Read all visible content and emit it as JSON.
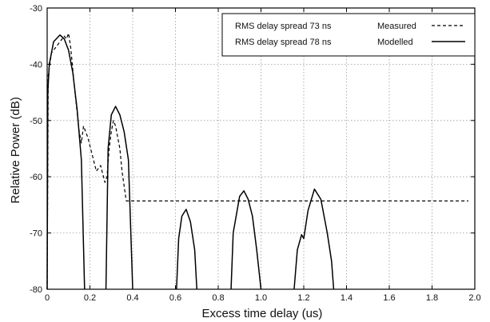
{
  "chart_data": {
    "type": "line",
    "title": "",
    "xlabel": "Excess time delay (us)",
    "ylabel": "Relative Power (dB)",
    "xlim": [
      0,
      2.0
    ],
    "ylim": [
      -80,
      -30
    ],
    "x_ticks": [
      "0",
      "0.2",
      "0.4",
      "0.6",
      "0.8",
      "1.0",
      "1.2",
      "1.4",
      "1.6",
      "1.8",
      "2.0"
    ],
    "y_ticks": [
      "-30",
      "-40",
      "-50",
      "-60",
      "-70",
      "-80"
    ],
    "grid": true,
    "legend_position": "top-right",
    "series": [
      {
        "name": "Measured",
        "legend_label": "RMS delay spread 73 ns",
        "style": "dashed",
        "color": "#000000",
        "points": [
          [
            0.0,
            -80
          ],
          [
            0.005,
            -42
          ],
          [
            0.02,
            -38
          ],
          [
            0.05,
            -36.5
          ],
          [
            0.08,
            -35
          ],
          [
            0.09,
            -35.5
          ],
          [
            0.1,
            -34.5
          ],
          [
            0.11,
            -37
          ],
          [
            0.13,
            -45
          ],
          [
            0.15,
            -52
          ],
          [
            0.16,
            -54
          ],
          [
            0.17,
            -51
          ],
          [
            0.19,
            -53
          ],
          [
            0.21,
            -56
          ],
          [
            0.23,
            -59
          ],
          [
            0.25,
            -58
          ],
          [
            0.27,
            -61
          ],
          [
            0.28,
            -60
          ],
          [
            0.29,
            -55
          ],
          [
            0.3,
            -52
          ],
          [
            0.31,
            -50
          ],
          [
            0.32,
            -51
          ],
          [
            0.34,
            -55
          ],
          [
            0.35,
            -59
          ],
          [
            0.37,
            -64.3
          ],
          [
            1.97,
            -64.3
          ]
        ]
      },
      {
        "name": "Modelled",
        "legend_label": "RMS delay spread 78 ns",
        "style": "solid",
        "color": "#000000",
        "segments": [
          [
            [
              0.0,
              -80
            ],
            [
              0.003,
              -45
            ],
            [
              0.01,
              -40
            ],
            [
              0.03,
              -36
            ],
            [
              0.06,
              -34.8
            ],
            [
              0.08,
              -35.5
            ],
            [
              0.1,
              -37.5
            ],
            [
              0.12,
              -41.5
            ],
            [
              0.14,
              -48
            ],
            [
              0.16,
              -57
            ],
            [
              0.175,
              -80
            ]
          ],
          [
            [
              0.275,
              -80
            ],
            [
              0.285,
              -55
            ],
            [
              0.3,
              -49
            ],
            [
              0.32,
              -47.5
            ],
            [
              0.34,
              -49
            ],
            [
              0.36,
              -52
            ],
            [
              0.38,
              -57
            ],
            [
              0.4,
              -80
            ]
          ],
          [
            [
              0.605,
              -80
            ],
            [
              0.615,
              -71
            ],
            [
              0.63,
              -67
            ],
            [
              0.65,
              -65.8
            ],
            [
              0.67,
              -68
            ],
            [
              0.69,
              -73
            ],
            [
              0.7,
              -80
            ]
          ],
          [
            [
              0.86,
              -80
            ],
            [
              0.87,
              -70
            ],
            [
              0.9,
              -63.5
            ],
            [
              0.92,
              -62.5
            ],
            [
              0.94,
              -64
            ],
            [
              0.96,
              -67
            ],
            [
              0.98,
              -73
            ],
            [
              1.0,
              -80
            ]
          ],
          [
            [
              1.155,
              -80
            ],
            [
              1.17,
              -73
            ],
            [
              1.19,
              -70.3
            ],
            [
              1.2,
              -71
            ],
            [
              1.22,
              -66
            ],
            [
              1.25,
              -62.2
            ],
            [
              1.28,
              -64
            ],
            [
              1.31,
              -70
            ],
            [
              1.33,
              -75
            ],
            [
              1.34,
              -80
            ]
          ]
        ]
      }
    ],
    "legend": [
      {
        "label": "RMS delay spread 73 ns",
        "name": "Measured",
        "style": "dashed"
      },
      {
        "label": "RMS delay spread 78 ns",
        "name": "Modelled",
        "style": "solid"
      }
    ]
  }
}
